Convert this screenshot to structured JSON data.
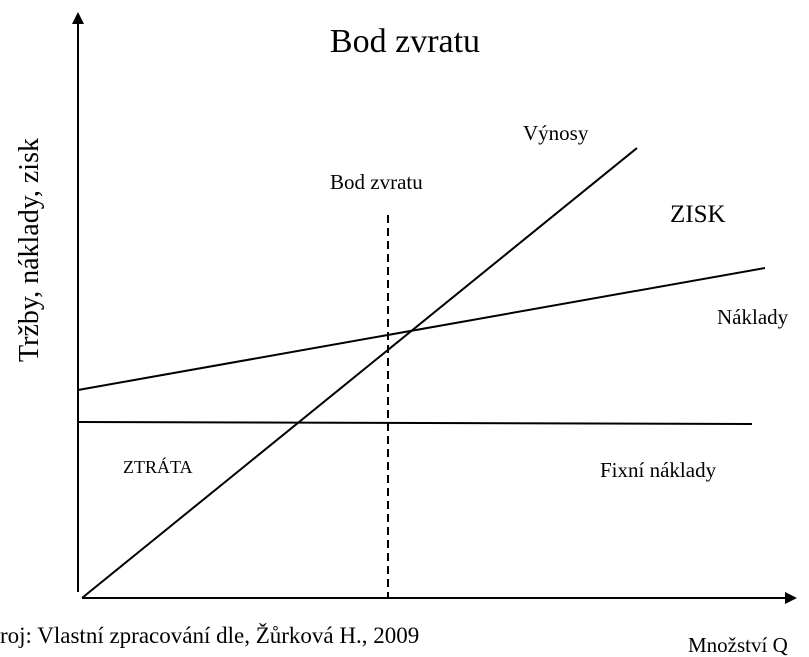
{
  "title": "Bod zvratu",
  "y_axis_label": "Tržby, náklady, zisk",
  "x_axis_label": "Množství Q",
  "labels": {
    "revenue": "Výnosy",
    "break_even": "Bod zvratu",
    "profit": "ZISK",
    "costs": "Náklady",
    "loss": "ZTRÁTA",
    "fixed_costs": "Fixní náklady"
  },
  "source": "roj: Vlastní zpracování dle, Žůrková H., 2009"
}
